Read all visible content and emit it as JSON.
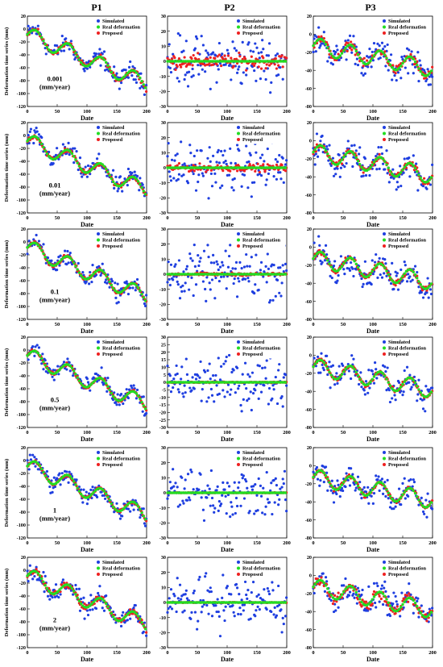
{
  "figure": {
    "col_titles": [
      "P1",
      "P2",
      "P3"
    ],
    "colors": {
      "simulated": "#1f3fe0",
      "real": "#22dd22",
      "proposed": "#ee2020"
    }
  },
  "chart_data": [
    {
      "type": "scatter",
      "panel": "P1 row 1",
      "row": 0,
      "col": 0,
      "ylabel": "Deformation time series (mm)",
      "xlabel": "Date",
      "xlim": [
        0,
        200
      ],
      "ylim": [
        -120,
        20
      ],
      "yticks": [
        20,
        0,
        -20,
        -40,
        -60,
        -80,
        -100,
        -120
      ],
      "xticks": [
        0,
        50,
        100,
        150,
        200
      ],
      "legend": [
        "Simulated",
        "Real deformation",
        "Proposed"
      ],
      "annotation": [
        "0.001",
        "(mm/year)"
      ],
      "trend": {
        "start": -5,
        "slope": -0.38,
        "amp": 12,
        "period": 55,
        "phase": 0
      },
      "noise": {
        "sim": 12,
        "prop": 3
      },
      "grid": false
    },
    {
      "type": "scatter",
      "panel": "P2 row 1",
      "row": 0,
      "col": 1,
      "ylabel": "",
      "xlabel": "Date",
      "xlim": [
        0,
        200
      ],
      "ylim": [
        -30,
        30
      ],
      "yticks": [
        30,
        20,
        10,
        0,
        -10,
        -20,
        -30
      ],
      "xticks": [
        0,
        50,
        100,
        150,
        200
      ],
      "legend": [
        "Simulated",
        "Real deformation",
        "Proposed"
      ],
      "trend": {
        "start": 0,
        "slope": 0,
        "amp": 0,
        "period": 55,
        "phase": 0
      },
      "noise": {
        "sim": 14,
        "prop": 4
      },
      "grid": false
    },
    {
      "type": "scatter",
      "panel": "P3 row 1",
      "row": 0,
      "col": 2,
      "ylabel": "",
      "xlabel": "Date",
      "xlim": [
        0,
        200
      ],
      "ylim": [
        -80,
        20
      ],
      "yticks": [
        20,
        0,
        -20,
        -40,
        -60,
        -80
      ],
      "xticks": [
        0,
        50,
        100,
        150,
        200
      ],
      "legend": [
        "Simulated",
        "Real deformation",
        "Proposed"
      ],
      "trend": {
        "start": -10,
        "slope": -0.13,
        "amp": 9,
        "period": 50,
        "phase": 0
      },
      "noise": {
        "sim": 13,
        "prop": 4
      },
      "grid": false
    },
    {
      "type": "scatter",
      "panel": "P1 row 2",
      "row": 1,
      "col": 0,
      "ylabel": "Deformation time series (mm)",
      "xlabel": "Date",
      "xlim": [
        0,
        200
      ],
      "ylim": [
        -120,
        20
      ],
      "yticks": [
        20,
        0,
        -20,
        -40,
        -60,
        -80,
        -100,
        -120
      ],
      "xticks": [
        0,
        50,
        100,
        150,
        200
      ],
      "legend": [
        "Simulated",
        "Real deformation",
        "Proposed"
      ],
      "annotation": [
        "0.01",
        "(mm/year)"
      ],
      "trend": {
        "start": -5,
        "slope": -0.38,
        "amp": 12,
        "period": 55,
        "phase": 0
      },
      "noise": {
        "sim": 12,
        "prop": 3
      },
      "grid": false
    },
    {
      "type": "scatter",
      "panel": "P2 row 2",
      "row": 1,
      "col": 1,
      "ylabel": "",
      "xlabel": "Date",
      "xlim": [
        0,
        200
      ],
      "ylim": [
        -30,
        30
      ],
      "yticks": [
        30,
        20,
        10,
        0,
        -10,
        -20,
        -30
      ],
      "xticks": [
        0,
        50,
        100,
        150,
        200
      ],
      "legend": [
        "Simulated",
        "Real deformation",
        "Proposed"
      ],
      "trend": {
        "start": 0,
        "slope": 0,
        "amp": 0,
        "period": 55,
        "phase": 0
      },
      "noise": {
        "sim": 14,
        "prop": 2
      },
      "grid": false
    },
    {
      "type": "scatter",
      "panel": "P3 row 2",
      "row": 1,
      "col": 2,
      "ylabel": "",
      "xlabel": "Date",
      "xlim": [
        0,
        200
      ],
      "ylim": [
        -80,
        20
      ],
      "yticks": [
        20,
        0,
        -20,
        -40,
        -60,
        -80
      ],
      "xticks": [
        0,
        50,
        100,
        150,
        200
      ],
      "legend": [
        "Simulated",
        "Real deformation",
        "Proposed"
      ],
      "trend": {
        "start": -10,
        "slope": -0.13,
        "amp": 9,
        "period": 50,
        "phase": 0
      },
      "noise": {
        "sim": 13,
        "prop": 3
      },
      "grid": false
    },
    {
      "type": "scatter",
      "panel": "P1 row 3",
      "row": 2,
      "col": 0,
      "ylabel": "Deformation time series (mm)",
      "xlabel": "Date",
      "xlim": [
        0,
        200
      ],
      "ylim": [
        -120,
        20
      ],
      "yticks": [
        20,
        0,
        -20,
        -40,
        -60,
        -80,
        -100,
        -120
      ],
      "xticks": [
        0,
        50,
        100,
        150,
        200
      ],
      "legend": [
        "Simulated",
        "Real deformation",
        "Proposed"
      ],
      "annotation": [
        "0.1",
        "(mm/year)"
      ],
      "trend": {
        "start": -5,
        "slope": -0.38,
        "amp": 12,
        "period": 55,
        "phase": 0
      },
      "noise": {
        "sim": 12,
        "prop": 2.5
      },
      "grid": false
    },
    {
      "type": "scatter",
      "panel": "P2 row 3",
      "row": 2,
      "col": 1,
      "ylabel": "",
      "xlabel": "Date",
      "xlim": [
        0,
        200
      ],
      "ylim": [
        -30,
        30
      ],
      "yticks": [
        30,
        20,
        10,
        0,
        -10,
        -20,
        -30
      ],
      "xticks": [
        0,
        50,
        100,
        150,
        200
      ],
      "legend": [
        "Simulated",
        "Real deformation",
        "Proposed"
      ],
      "trend": {
        "start": 0,
        "slope": 0,
        "amp": 0,
        "period": 55,
        "phase": 0
      },
      "noise": {
        "sim": 14,
        "prop": 0.8
      },
      "grid": false
    },
    {
      "type": "scatter",
      "panel": "P3 row 3",
      "row": 2,
      "col": 2,
      "ylabel": "",
      "xlabel": "Date",
      "xlim": [
        0,
        200
      ],
      "ylim": [
        -80,
        20
      ],
      "yticks": [
        20,
        0,
        -20,
        -40,
        -60,
        -80
      ],
      "xticks": [
        0,
        50,
        100,
        150,
        200
      ],
      "legend": [
        "Simulated",
        "Real deformation",
        "Proposed"
      ],
      "trend": {
        "start": -10,
        "slope": -0.13,
        "amp": 9,
        "period": 50,
        "phase": 0
      },
      "noise": {
        "sim": 13,
        "prop": 2.5
      },
      "grid": false
    },
    {
      "type": "scatter",
      "panel": "P1 row 4",
      "row": 3,
      "col": 0,
      "ylabel": "Deformation time series (mm)",
      "xlabel": "Date",
      "xlim": [
        0,
        200
      ],
      "ylim": [
        -120,
        20
      ],
      "yticks": [
        20,
        0,
        -20,
        -40,
        -60,
        -80,
        -100,
        -120
      ],
      "xticks": [
        0,
        50,
        100,
        150,
        200
      ],
      "legend": [
        "Simulated",
        "Real deformation",
        "Proposed"
      ],
      "annotation": [
        "0.5",
        "(mm/year)"
      ],
      "trend": {
        "start": -5,
        "slope": -0.38,
        "amp": 12,
        "period": 55,
        "phase": 0
      },
      "noise": {
        "sim": 12,
        "prop": 2
      },
      "grid": false
    },
    {
      "type": "scatter",
      "panel": "P2 row 4",
      "row": 3,
      "col": 1,
      "ylabel": "",
      "xlabel": "Date",
      "xlim": [
        0,
        200
      ],
      "ylim": [
        -30,
        30
      ],
      "yticks": [
        30,
        25,
        20,
        15,
        10,
        5,
        0,
        -5,
        -10,
        -15,
        -20,
        -25,
        -30
      ],
      "xticks": [
        0,
        50,
        100,
        150,
        200
      ],
      "legend": [
        "Simulated",
        "Real deformation",
        "Proposed"
      ],
      "trend": {
        "start": 0,
        "slope": 0,
        "amp": 0,
        "period": 55,
        "phase": 0
      },
      "noise": {
        "sim": 14,
        "prop": 0.3
      },
      "grid": false
    },
    {
      "type": "scatter",
      "panel": "P3 row 4",
      "row": 3,
      "col": 2,
      "ylabel": "",
      "xlabel": "Date",
      "xlim": [
        0,
        200
      ],
      "ylim": [
        -80,
        20
      ],
      "yticks": [
        20,
        0,
        -20,
        -40,
        -60,
        -80
      ],
      "xticks": [
        0,
        50,
        100,
        150,
        200
      ],
      "legend": [
        "Simulated",
        "Real deformation",
        "Proposed"
      ],
      "trend": {
        "start": -10,
        "slope": -0.13,
        "amp": 9,
        "period": 50,
        "phase": 0
      },
      "noise": {
        "sim": 13,
        "prop": 2
      },
      "grid": false
    },
    {
      "type": "scatter",
      "panel": "P1 row 5",
      "row": 4,
      "col": 0,
      "ylabel": "Deformation time series (mm)",
      "xlabel": "Date",
      "xlim": [
        0,
        200
      ],
      "ylim": [
        -120,
        20
      ],
      "yticks": [
        20,
        0,
        -20,
        -40,
        -60,
        -80,
        -100,
        -120
      ],
      "xticks": [
        0,
        50,
        100,
        150,
        200
      ],
      "legend": [
        "Simulated",
        "Real deformation",
        "Proposed"
      ],
      "annotation": [
        "1",
        "(mm/year)"
      ],
      "trend": {
        "start": -5,
        "slope": -0.38,
        "amp": 12,
        "period": 55,
        "phase": 0
      },
      "noise": {
        "sim": 12,
        "prop": 2
      },
      "grid": false
    },
    {
      "type": "scatter",
      "panel": "P2 row 5",
      "row": 4,
      "col": 1,
      "ylabel": "",
      "xlabel": "Date",
      "xlim": [
        0,
        200
      ],
      "ylim": [
        -30,
        30
      ],
      "yticks": [
        30,
        20,
        10,
        0,
        -10,
        -20,
        -30
      ],
      "xticks": [
        0,
        50,
        100,
        150,
        200
      ],
      "legend": [
        "Simulated",
        "Real deformation",
        "Proposed"
      ],
      "trend": {
        "start": 0,
        "slope": 0,
        "amp": 0,
        "period": 55,
        "phase": 0
      },
      "noise": {
        "sim": 14,
        "prop": 0.2
      },
      "grid": false
    },
    {
      "type": "scatter",
      "panel": "P3 row 5",
      "row": 4,
      "col": 2,
      "ylabel": "",
      "xlabel": "Date",
      "xlim": [
        0,
        200
      ],
      "ylim": [
        -80,
        20
      ],
      "yticks": [
        20,
        0,
        -20,
        -40,
        -60,
        -80
      ],
      "xticks": [
        0,
        50,
        100,
        150,
        200
      ],
      "legend": [
        "Simulated",
        "Real deformation",
        "Proposed"
      ],
      "trend": {
        "start": -10,
        "slope": -0.13,
        "amp": 9,
        "period": 50,
        "phase": 0
      },
      "noise": {
        "sim": 13,
        "prop": 2
      },
      "grid": false
    },
    {
      "type": "scatter",
      "panel": "P1 row 6",
      "row": 5,
      "col": 0,
      "ylabel": "Deformation time series (mm)",
      "xlabel": "Date",
      "xlim": [
        0,
        200
      ],
      "ylim": [
        -120,
        20
      ],
      "yticks": [
        20,
        0,
        -20,
        -40,
        -60,
        -80,
        -100,
        -120
      ],
      "xticks": [
        0,
        50,
        100,
        150,
        200
      ],
      "legend": [
        "Simulated",
        "Real deformation",
        "Proposed"
      ],
      "annotation": [
        "2",
        "(mm/year)"
      ],
      "trend": {
        "start": -5,
        "slope": -0.38,
        "amp": 12,
        "period": 55,
        "phase": 0
      },
      "noise": {
        "sim": 12,
        "prop": 4
      },
      "grid": false
    },
    {
      "type": "scatter",
      "panel": "P2 row 6",
      "row": 5,
      "col": 1,
      "ylabel": "",
      "xlabel": "Date",
      "xlim": [
        0,
        200
      ],
      "ylim": [
        -30,
        30
      ],
      "yticks": [
        30,
        20,
        10,
        0,
        -10,
        -20,
        -30
      ],
      "xticks": [
        0,
        50,
        100,
        150,
        200
      ],
      "legend": [
        "Simulated",
        "Real deformation",
        "Proposed"
      ],
      "trend": {
        "start": 0,
        "slope": 0,
        "amp": 0,
        "period": 55,
        "phase": 0
      },
      "noise": {
        "sim": 14,
        "prop": 0.2
      },
      "grid": false
    },
    {
      "type": "scatter",
      "panel": "P3 row 6",
      "row": 5,
      "col": 2,
      "ylabel": "",
      "xlabel": "Date",
      "xlim": [
        0,
        200
      ],
      "ylim": [
        -80,
        20
      ],
      "yticks": [
        20,
        0,
        -20,
        -40,
        -60,
        -80
      ],
      "xticks": [
        0,
        50,
        100,
        150,
        200
      ],
      "legend": [
        "Simulated",
        "Real deformation",
        "Proposed"
      ],
      "trend": {
        "start": -10,
        "slope": -0.13,
        "amp": 9,
        "period": 50,
        "phase": 0
      },
      "noise": {
        "sim": 13,
        "prop": 5
      },
      "grid": false
    }
  ]
}
